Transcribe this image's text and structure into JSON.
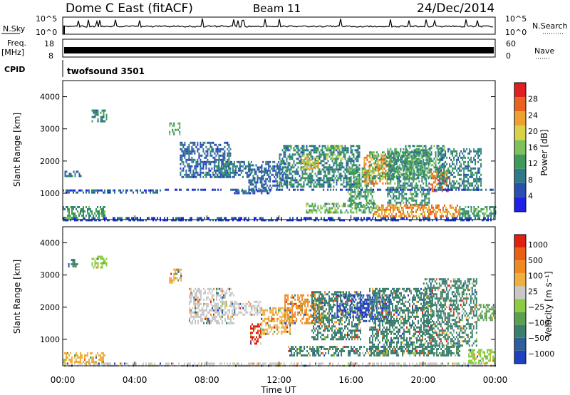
{
  "header": {
    "station": "Dome C East (fitACF)",
    "beam": "Beam 11",
    "date": "24/Dec/2014"
  },
  "top_panels": {
    "nsky_label": "N.Sky",
    "nsky_ticks": [
      "10^5",
      "10^0"
    ],
    "nsky_right_ticks": [
      "10^5",
      "10^0"
    ],
    "nsearch_label": "N.Search",
    "freq_label": "Freq.",
    "freq_unit": "[MHz]",
    "freq_ticks": [
      "18",
      "8"
    ],
    "nave_ticks": [
      "60",
      "0"
    ],
    "nave_label": "Nave",
    "cpid_label": "CPID",
    "cpid_value": "twofsound 3501"
  },
  "x_axis": {
    "label": "Time UT",
    "ticks": [
      "00:00",
      "04:00",
      "08:00",
      "12:00",
      "16:00",
      "20:00",
      "00:00"
    ]
  },
  "chart_data": [
    {
      "type": "heatmap",
      "panel": "power",
      "ylabel": "Slant Range [km]",
      "yticks": [
        "1000",
        "2000",
        "3000",
        "4000"
      ],
      "ylim": [
        180,
        4500
      ],
      "xlim": [
        0,
        24
      ],
      "colorbar": {
        "label": "Power [dB]",
        "ticks": [
          "4",
          "8",
          "12",
          "16",
          "20",
          "24",
          "28"
        ],
        "range": [
          0,
          32
        ],
        "colors": [
          "#1f1fe6",
          "#2a4fb0",
          "#2f7a88",
          "#3d9a5a",
          "#7ec15a",
          "#d8d24a",
          "#f0a030",
          "#e8641e",
          "#e02020"
        ]
      },
      "regions": [
        {
          "t": [
            0.0,
            24.0
          ],
          "r": [
            190,
            260
          ],
          "v": 5
        },
        {
          "t": [
            0.0,
            2.3
          ],
          "r": [
            260,
            600
          ],
          "v": 12
        },
        {
          "t": [
            0.1,
            1.0
          ],
          "r": [
            1550,
            1700
          ],
          "v": 8
        },
        {
          "t": [
            0.0,
            5.5
          ],
          "r": [
            1050,
            1120
          ],
          "v": 6
        },
        {
          "t": [
            1.6,
            2.4
          ],
          "r": [
            3250,
            3600
          ],
          "v": 10
        },
        {
          "t": [
            5.9,
            6.5
          ],
          "r": [
            2850,
            3200
          ],
          "v": 14
        },
        {
          "t": [
            6.5,
            9.3
          ],
          "r": [
            1500,
            2600
          ],
          "v": 7
        },
        {
          "t": [
            8.3,
            10.5
          ],
          "r": [
            1500,
            2000
          ],
          "v": 9
        },
        {
          "t": [
            9.5,
            11.5
          ],
          "r": [
            1000,
            1100
          ],
          "v": 6
        },
        {
          "t": [
            10.3,
            11.2
          ],
          "r": [
            1100,
            1900
          ],
          "v": 8
        },
        {
          "t": [
            11.0,
            12.5
          ],
          "r": [
            1200,
            2000
          ],
          "v": 7
        },
        {
          "t": [
            12.0,
            16.5
          ],
          "r": [
            1200,
            2500
          ],
          "v": 10
        },
        {
          "t": [
            13.2,
            14.2
          ],
          "r": [
            1800,
            2200
          ],
          "v": 20
        },
        {
          "t": [
            14.6,
            15.5
          ],
          "r": [
            2100,
            2500
          ],
          "v": 16
        },
        {
          "t": [
            15.8,
            17.3
          ],
          "r": [
            600,
            1800
          ],
          "v": 13
        },
        {
          "t": [
            16.7,
            18.2
          ],
          "r": [
            1300,
            2200
          ],
          "v": 24
        },
        {
          "t": [
            17.0,
            19.5
          ],
          "r": [
            1500,
            2300
          ],
          "v": 14
        },
        {
          "t": [
            18.0,
            20.3
          ],
          "r": [
            650,
            2400
          ],
          "v": 11
        },
        {
          "t": [
            19.0,
            21.2
          ],
          "r": [
            1500,
            2500
          ],
          "v": 12
        },
        {
          "t": [
            20.4,
            21.4
          ],
          "r": [
            1100,
            1700
          ],
          "v": 26
        },
        {
          "t": [
            20.8,
            23.2
          ],
          "r": [
            1100,
            2400
          ],
          "v": 10
        },
        {
          "t": [
            17.2,
            22.0
          ],
          "r": [
            300,
            650
          ],
          "v": 24
        },
        {
          "t": [
            22.0,
            24.0
          ],
          "r": [
            280,
            600
          ],
          "v": 12
        },
        {
          "t": [
            13.5,
            17.5
          ],
          "r": [
            400,
            700
          ],
          "v": 14
        },
        {
          "t": [
            5.5,
            24.0
          ],
          "r": [
            1080,
            1140
          ],
          "v": 5
        }
      ]
    },
    {
      "type": "heatmap",
      "panel": "velocity",
      "ylabel": "Slant Range [km]",
      "yticks": [
        "1000",
        "2000",
        "3000",
        "4000"
      ],
      "ylim": [
        180,
        4500
      ],
      "xlim": [
        0,
        24
      ],
      "colorbar": {
        "label": "Velocity [m s⁻¹]",
        "ticks": [
          "1000",
          "500",
          "100",
          "25",
          "−25",
          "−100",
          "−500",
          "−1000"
        ],
        "colors": [
          "#2040c0",
          "#2f5f9a",
          "#3a7f6c",
          "#5aa050",
          "#8ccc40",
          "#c8c8c8",
          "#f0b040",
          "#f08a20",
          "#e86010",
          "#e02010"
        ]
      },
      "regions": [
        {
          "t": [
            0.0,
            24.0
          ],
          "r": [
            200,
            280
          ],
          "v": "#c8c8c8"
        },
        {
          "t": [
            0.0,
            2.3
          ],
          "r": [
            280,
            600
          ],
          "v": "#f0b040"
        },
        {
          "t": [
            1.6,
            2.4
          ],
          "r": [
            3250,
            3600
          ],
          "v": "#8ccc40"
        },
        {
          "t": [
            0.3,
            0.8
          ],
          "r": [
            3300,
            3500
          ],
          "v": "#3a7f6c"
        },
        {
          "t": [
            5.9,
            6.6
          ],
          "r": [
            2800,
            3200
          ],
          "v": "#f0b040"
        },
        {
          "t": [
            7.0,
            9.5
          ],
          "r": [
            1500,
            2600
          ],
          "v": "#c8c8c8"
        },
        {
          "t": [
            9.5,
            11.0
          ],
          "r": [
            1800,
            2200
          ],
          "v": "#c8c8c8"
        },
        {
          "t": [
            10.4,
            11.0
          ],
          "r": [
            900,
            1500
          ],
          "v": "#e02010"
        },
        {
          "t": [
            11.0,
            12.6
          ],
          "r": [
            1200,
            2000
          ],
          "v": "#f0b040"
        },
        {
          "t": [
            12.3,
            14.5
          ],
          "r": [
            1500,
            2400
          ],
          "v": "#f08a20"
        },
        {
          "t": [
            13.8,
            16.5
          ],
          "r": [
            1000,
            2500
          ],
          "v": "#3a7f6c"
        },
        {
          "t": [
            15.2,
            17.0
          ],
          "r": [
            1700,
            2400
          ],
          "v": "#2040c0"
        },
        {
          "t": [
            16.5,
            18.2
          ],
          "r": [
            1600,
            2400
          ],
          "v": "#2040c0"
        },
        {
          "t": [
            17.0,
            20.5
          ],
          "r": [
            600,
            2600
          ],
          "v": "#3a7f6c"
        },
        {
          "t": [
            20.0,
            23.0
          ],
          "r": [
            800,
            2900
          ],
          "v": "#3a7f6c"
        },
        {
          "t": [
            12.5,
            22.0
          ],
          "r": [
            500,
            800
          ],
          "v": "#3a7f6c"
        },
        {
          "t": [
            22.5,
            24.0
          ],
          "r": [
            300,
            700
          ],
          "v": "#8ccc40"
        },
        {
          "t": [
            23.0,
            24.0
          ],
          "r": [
            1600,
            2100
          ],
          "v": "#5aa050"
        }
      ]
    }
  ]
}
